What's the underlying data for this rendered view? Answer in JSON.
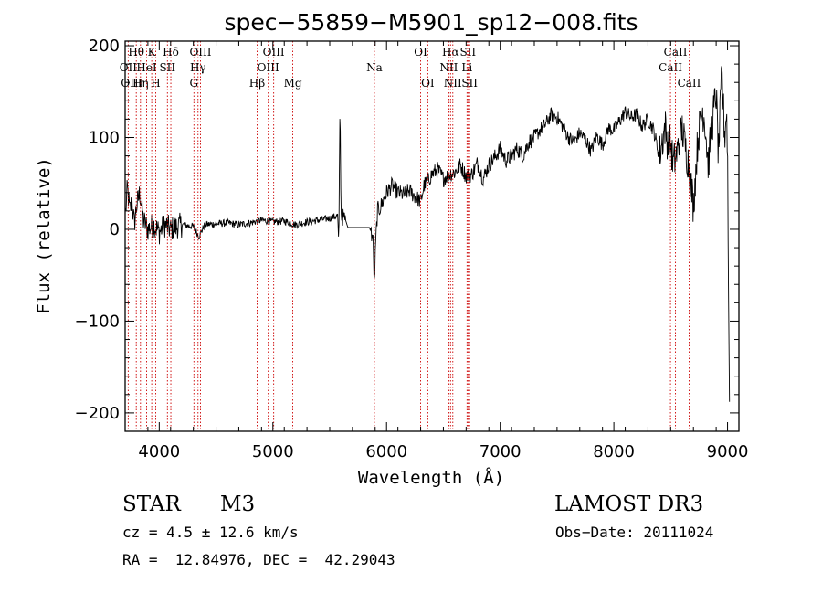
{
  "chart_data": {
    "type": "line",
    "title": "spec−55859−M5901_sp12−008.fits",
    "xlabel": "Wavelength (Å)",
    "ylabel": "Flux (relative)",
    "xlim": [
      3700,
      9100
    ],
    "ylim": [
      -220,
      205
    ],
    "x_ticks": [
      4000,
      5000,
      6000,
      7000,
      8000,
      9000
    ],
    "x_tick_labels": [
      "4000",
      "5000",
      "6000",
      "7000",
      "8000",
      "9000"
    ],
    "y_ticks": [
      200,
      100,
      0,
      -100,
      -200
    ],
    "y_tick_labels": [
      "200",
      "100",
      "0",
      "−100",
      "−200"
    ],
    "line_color": "#000000",
    "marker_color": "#cc0000",
    "spectral_lines": [
      {
        "label": "Hθ",
        "x": 3798,
        "row": 0
      },
      {
        "label": "OII",
        "x": 3727,
        "row": 1
      },
      {
        "label": "OIII",
        "x": 3760,
        "row": 2
      },
      {
        "label": "Hη",
        "x": 3835,
        "row": 2
      },
      {
        "label": "HeI",
        "x": 3889,
        "row": 1
      },
      {
        "label": "K",
        "x": 3934,
        "row": 0
      },
      {
        "label": "H",
        "x": 3969,
        "row": 2
      },
      {
        "label": "SII",
        "x": 4072,
        "row": 1
      },
      {
        "label": "Hδ",
        "x": 4102,
        "row": 0
      },
      {
        "label": "G",
        "x": 4305,
        "row": 2
      },
      {
        "label": "Hγ",
        "x": 4341,
        "row": 1
      },
      {
        "label": "OIII",
        "x": 4363,
        "row": 0
      },
      {
        "label": "Hβ",
        "x": 4861,
        "row": 2
      },
      {
        "label": "OIII",
        "x": 4959,
        "row": 1
      },
      {
        "label": "OIII",
        "x": 5007,
        "row": 0
      },
      {
        "label": "Mg",
        "x": 5175,
        "row": 2
      },
      {
        "label": "Na",
        "x": 5893,
        "row": 1
      },
      {
        "label": "OI",
        "x": 6300,
        "row": 0
      },
      {
        "label": "OI",
        "x": 6363,
        "row": 2
      },
      {
        "label": "NII",
        "x": 6548,
        "row": 1
      },
      {
        "label": "Hα",
        "x": 6563,
        "row": 0
      },
      {
        "label": "NII",
        "x": 6583,
        "row": 2
      },
      {
        "label": "Li",
        "x": 6708,
        "row": 1
      },
      {
        "label": "SII",
        "x": 6716,
        "row": 0
      },
      {
        "label": "SII",
        "x": 6731,
        "row": 2
      },
      {
        "label": "CaII",
        "x": 8498,
        "row": 1
      },
      {
        "label": "CaII",
        "x": 8542,
        "row": 0
      },
      {
        "label": "CaII",
        "x": 8662,
        "row": 2
      }
    ],
    "flux_anchors": [
      [
        3700,
        10
      ],
      [
        3720,
        45
      ],
      [
        3740,
        20
      ],
      [
        3760,
        30
      ],
      [
        3780,
        5
      ],
      [
        3800,
        25
      ],
      [
        3830,
        40
      ],
      [
        3860,
        10
      ],
      [
        3900,
        0
      ],
      [
        3950,
        5
      ],
      [
        4000,
        -3
      ],
      [
        4050,
        5
      ],
      [
        4100,
        0
      ],
      [
        4200,
        5
      ],
      [
        4300,
        3
      ],
      [
        4350,
        -8
      ],
      [
        4400,
        5
      ],
      [
        4500,
        6
      ],
      [
        4600,
        7
      ],
      [
        4700,
        5
      ],
      [
        4800,
        7
      ],
      [
        4900,
        10
      ],
      [
        5000,
        8
      ],
      [
        5100,
        9
      ],
      [
        5200,
        5
      ],
      [
        5300,
        8
      ],
      [
        5400,
        10
      ],
      [
        5500,
        12
      ],
      [
        5570,
        15
      ],
      [
        5580,
        -20
      ],
      [
        5590,
        140
      ],
      [
        5600,
        15
      ],
      [
        5640,
        10
      ],
      [
        5660,
        2
      ],
      [
        5850,
        2
      ],
      [
        5880,
        -10
      ],
      [
        5893,
        -60
      ],
      [
        5905,
        -15
      ],
      [
        5920,
        20
      ],
      [
        5950,
        25
      ],
      [
        6000,
        40
      ],
      [
        6050,
        48
      ],
      [
        6100,
        40
      ],
      [
        6150,
        38
      ],
      [
        6200,
        42
      ],
      [
        6250,
        36
      ],
      [
        6300,
        30
      ],
      [
        6330,
        48
      ],
      [
        6360,
        52
      ],
      [
        6400,
        60
      ],
      [
        6450,
        65
      ],
      [
        6500,
        55
      ],
      [
        6550,
        60
      ],
      [
        6600,
        62
      ],
      [
        6650,
        70
      ],
      [
        6700,
        58
      ],
      [
        6750,
        60
      ],
      [
        6800,
        72
      ],
      [
        6850,
        55
      ],
      [
        6900,
        70
      ],
      [
        6950,
        78
      ],
      [
        7000,
        88
      ],
      [
        7050,
        75
      ],
      [
        7100,
        80
      ],
      [
        7150,
        88
      ],
      [
        7200,
        80
      ],
      [
        7250,
        95
      ],
      [
        7300,
        100
      ],
      [
        7350,
        108
      ],
      [
        7400,
        115
      ],
      [
        7450,
        125
      ],
      [
        7500,
        122
      ],
      [
        7550,
        112
      ],
      [
        7600,
        100
      ],
      [
        7650,
        95
      ],
      [
        7700,
        105
      ],
      [
        7750,
        98
      ],
      [
        7800,
        85
      ],
      [
        7850,
        102
      ],
      [
        7900,
        92
      ],
      [
        7950,
        110
      ],
      [
        8000,
        108
      ],
      [
        8050,
        118
      ],
      [
        8100,
        128
      ],
      [
        8150,
        122
      ],
      [
        8200,
        125
      ],
      [
        8250,
        112
      ],
      [
        8300,
        120
      ],
      [
        8350,
        108
      ],
      [
        8400,
        80
      ],
      [
        8450,
        112
      ],
      [
        8480,
        90
      ],
      [
        8500,
        95
      ],
      [
        8520,
        70
      ],
      [
        8560,
        85
      ],
      [
        8600,
        110
      ],
      [
        8620,
        95
      ],
      [
        8660,
        70
      ],
      [
        8700,
        25
      ],
      [
        8740,
        100
      ],
      [
        8780,
        130
      ],
      [
        8800,
        120
      ],
      [
        8830,
        70
      ],
      [
        8860,
        110
      ],
      [
        8900,
        150
      ],
      [
        8920,
        80
      ],
      [
        8950,
        170
      ],
      [
        8975,
        100
      ],
      [
        8990,
        130
      ],
      [
        9000,
        90
      ],
      [
        9010,
        -100
      ],
      [
        9020,
        -200
      ]
    ]
  },
  "info": {
    "object_class": "STAR",
    "subclass": "M3",
    "survey": "LAMOST DR3",
    "cz": "cz = 4.5 ± 12.6 km/s",
    "obs_date": "Obs−Date: 20111024",
    "coords": "RA =  12.84976, DEC =  42.29043"
  }
}
